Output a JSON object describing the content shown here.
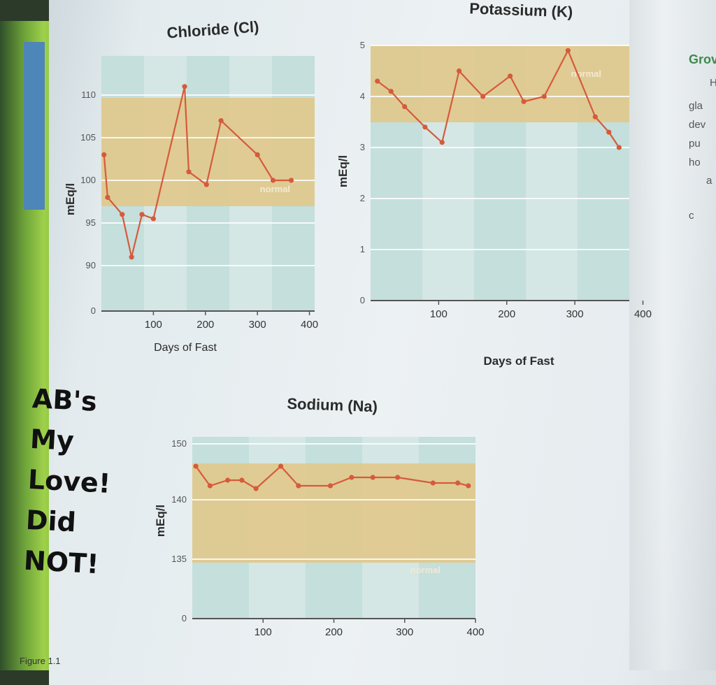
{
  "charts": {
    "chloride": {
      "title": "Chloride (Cl)",
      "ylabel": "mEq/l",
      "xlabel": "Days of Fast",
      "normal_label": "normal"
    },
    "potassium": {
      "title": "Potassium (K)",
      "ylabel": "mEq/l",
      "xlabel": "Days of Fast",
      "normal_label": "normal"
    },
    "sodium": {
      "title": "Sodium (Na)",
      "ylabel": "mEq/l",
      "normal_label": "normal"
    }
  },
  "chart_data": [
    {
      "type": "line",
      "title": "Chloride (Cl)",
      "xlabel": "Days of Fast",
      "ylabel": "mEq/l",
      "x_ticks": [
        100,
        200,
        300,
        400
      ],
      "y_ticks": [
        0,
        90,
        95,
        100,
        105,
        110
      ],
      "normal_band": [
        95,
        105
      ],
      "x": [
        5,
        12,
        40,
        58,
        78,
        100,
        160,
        168,
        202,
        230,
        300,
        330,
        365
      ],
      "y": [
        103,
        98,
        96,
        91,
        96,
        95.5,
        111,
        101,
        99.5,
        107,
        103,
        100,
        100
      ]
    },
    {
      "type": "line",
      "title": "Potassium (K)",
      "xlabel": "Days of Fast",
      "ylabel": "mEq/l",
      "x_ticks": [
        100,
        200,
        300,
        400
      ],
      "y_ticks": [
        0,
        1,
        2,
        3,
        4,
        5
      ],
      "normal_band": [
        3.5,
        5
      ],
      "x": [
        10,
        30,
        50,
        80,
        105,
        130,
        165,
        205,
        225,
        255,
        290,
        330,
        350,
        365
      ],
      "y": [
        4.3,
        4.1,
        3.8,
        3.4,
        3.1,
        4.5,
        4.0,
        4.4,
        3.9,
        4.0,
        4.9,
        3.6,
        3.3,
        3.0
      ]
    },
    {
      "type": "line",
      "title": "Sodium (Na)",
      "ylabel": "mEq/l",
      "x_ticks": [
        100,
        200,
        300,
        400
      ],
      "y_ticks": [
        0,
        135,
        140,
        150
      ],
      "normal_band": [
        135,
        145
      ],
      "x": [
        5,
        25,
        50,
        70,
        90,
        125,
        150,
        195,
        225,
        255,
        290,
        340,
        375,
        390
      ],
      "y": [
        146,
        142.5,
        143.5,
        143.5,
        142,
        146,
        142.5,
        142.5,
        144,
        144,
        144,
        143,
        143,
        142.5
      ]
    }
  ],
  "side_text": {
    "heading": "Grov",
    "lines": [
      "H",
      "gla",
      "dev",
      "pu",
      "ho",
      "a",
      "c"
    ]
  },
  "handwriting": "AB's\nMy Love!\nDid\nNOT!",
  "caption": "Figure 1.1"
}
